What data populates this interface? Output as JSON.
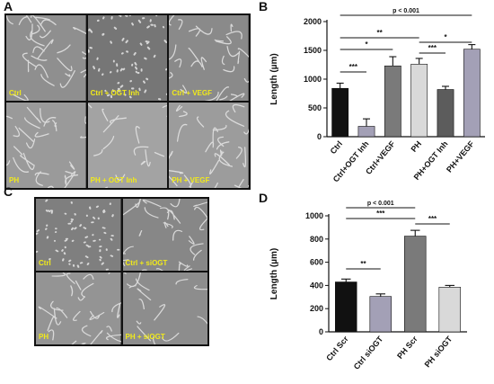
{
  "panels": {
    "A": {
      "letter": "A",
      "tiles": [
        {
          "label": "Ctrl",
          "tone": "#8f8f8f",
          "density": "network"
        },
        {
          "label": "Ctrl + OGT Inh",
          "tone": "#767676",
          "density": "dots"
        },
        {
          "label": "Ctrl + VEGF",
          "tone": "#8a8a8a",
          "density": "network"
        },
        {
          "label": "PH",
          "tone": "#9a9a9a",
          "density": "loops"
        },
        {
          "label": "PH + OGT Inh",
          "tone": "#a3a3a3",
          "density": "sparse"
        },
        {
          "label": "PH + VEGF",
          "tone": "#9c9c9c",
          "density": "loops"
        }
      ]
    },
    "C": {
      "letter": "C",
      "tiles": [
        {
          "label": "Ctrl",
          "tone": "#7f7f7f",
          "density": "dots"
        },
        {
          "label": "Ctrl + siOGT",
          "tone": "#878787",
          "density": "network"
        },
        {
          "label": "PH",
          "tone": "#949494",
          "density": "loops"
        },
        {
          "label": "PH + siOGT",
          "tone": "#8d8d8d",
          "density": "sparse"
        }
      ]
    }
  },
  "chart_data": [
    {
      "panel_letter": "B",
      "type": "bar",
      "categories": [
        "Ctrl",
        "Ctrl+OGT Inh",
        "Ctrl+VEGF",
        "PH",
        "PH+OGT Inh",
        "PH+VEGF"
      ],
      "values": [
        840,
        180,
        1230,
        1260,
        820,
        1520
      ],
      "errors": [
        90,
        130,
        160,
        100,
        55,
        80
      ],
      "colors": [
        "#111111",
        "#a3a0b6",
        "#7a7a7a",
        "#d9d9d9",
        "#5c5c5c",
        "#a3a0b6"
      ],
      "ylabel": "Length (µm)",
      "ylim": [
        0,
        2000
      ],
      "yticks": [
        "0",
        "500",
        "1000",
        "1500",
        "2000"
      ],
      "ytick_values": [
        0,
        500,
        1000,
        1500,
        2000
      ],
      "comparisons": [
        {
          "from": 0,
          "to": 5,
          "label": "p < 0.001"
        },
        {
          "from": 0,
          "to": 3,
          "label": "**"
        },
        {
          "from": 3,
          "to": 5,
          "label": "*"
        },
        {
          "from": 0,
          "to": 2,
          "label": "*"
        },
        {
          "from": 3,
          "to": 4,
          "label": "***"
        },
        {
          "from": 0,
          "to": 1,
          "label": "***"
        }
      ]
    },
    {
      "panel_letter": "D",
      "type": "bar",
      "categories": [
        "Ctrl Scr",
        "Ctrl siOGT",
        "PH Scr",
        "PH siOGT"
      ],
      "values": [
        430,
        305,
        825,
        385
      ],
      "errors": [
        25,
        22,
        50,
        15
      ],
      "colors": [
        "#111111",
        "#a3a0b6",
        "#7a7a7a",
        "#d9d9d9"
      ],
      "ylabel": "Length (µm)",
      "ylim": [
        0,
        1000
      ],
      "yticks": [
        "0",
        "200",
        "400",
        "600",
        "800",
        "1000"
      ],
      "ytick_values": [
        0,
        200,
        400,
        600,
        800,
        1000
      ],
      "comparisons": [
        {
          "from": 0,
          "to": 2,
          "label": "p < 0.001"
        },
        {
          "from": 0,
          "to": 2,
          "label": "***"
        },
        {
          "from": 2,
          "to": 3,
          "label": "***"
        },
        {
          "from": 0,
          "to": 1,
          "label": "**"
        }
      ]
    }
  ]
}
